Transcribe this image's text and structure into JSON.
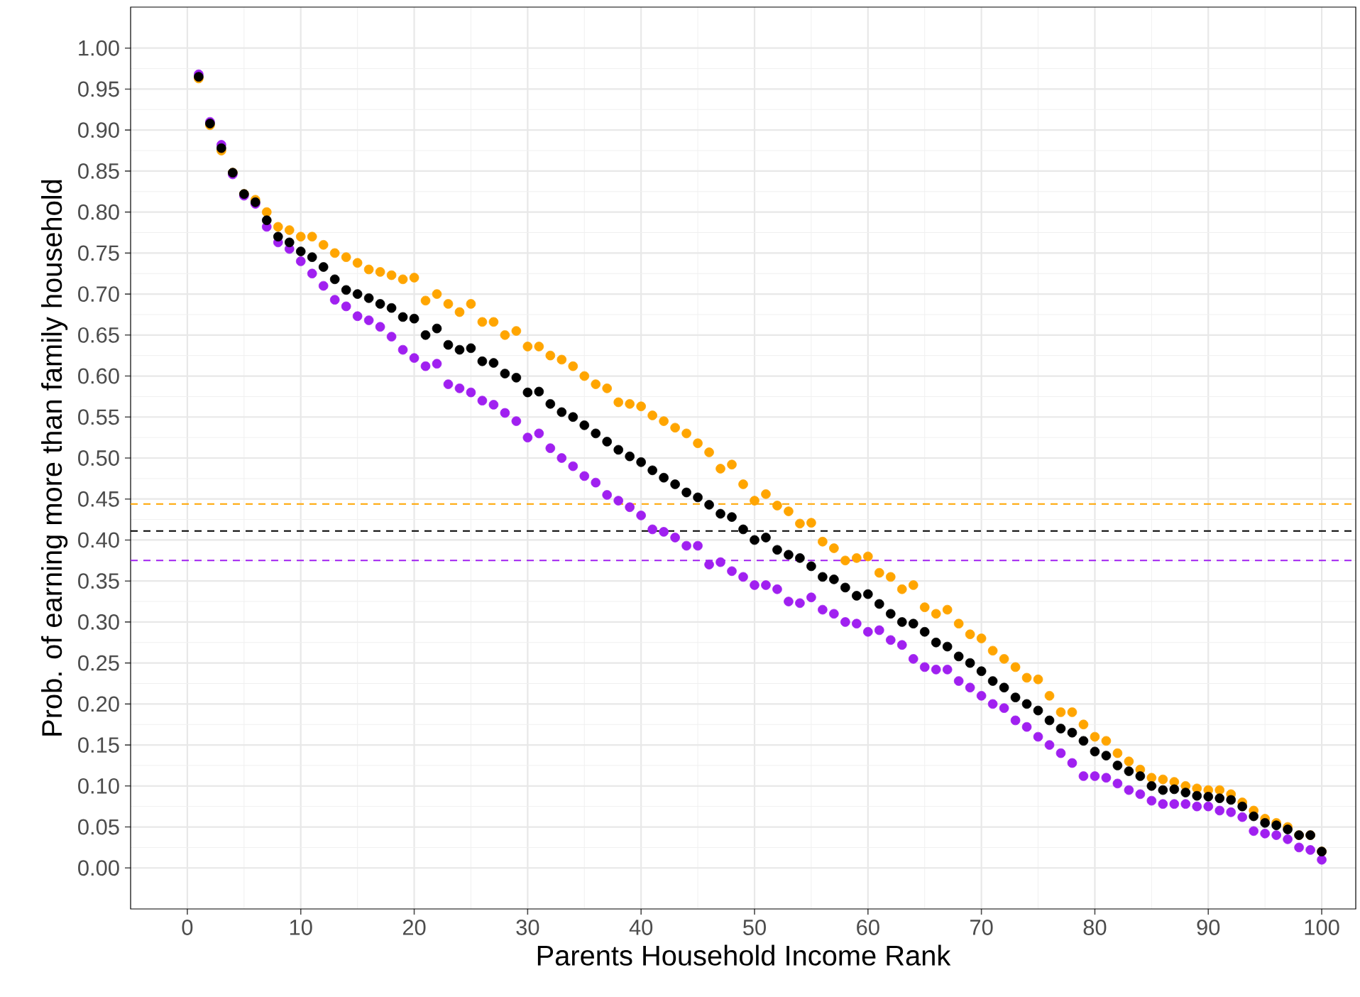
{
  "chart_data": {
    "type": "scatter",
    "xlabel": "Parents Household Income Rank",
    "ylabel": "Prob. of earning more than family household",
    "x": [
      1,
      2,
      3,
      4,
      5,
      6,
      7,
      8,
      9,
      10,
      11,
      12,
      13,
      14,
      15,
      16,
      17,
      18,
      19,
      20,
      21,
      22,
      23,
      24,
      25,
      26,
      27,
      28,
      29,
      30,
      31,
      32,
      33,
      34,
      35,
      36,
      37,
      38,
      39,
      40,
      41,
      42,
      43,
      44,
      45,
      46,
      47,
      48,
      49,
      50,
      51,
      52,
      53,
      54,
      55,
      56,
      57,
      58,
      59,
      60,
      61,
      62,
      63,
      64,
      65,
      66,
      67,
      68,
      69,
      70,
      71,
      72,
      73,
      74,
      75,
      76,
      77,
      78,
      79,
      80,
      81,
      82,
      83,
      84,
      85,
      86,
      87,
      88,
      89,
      90,
      91,
      92,
      93,
      94,
      95,
      96,
      97,
      98,
      99,
      100
    ],
    "series": [
      {
        "color": "#ffa500",
        "values": [
          0.963,
          0.906,
          0.875,
          0.848,
          0.822,
          0.815,
          0.8,
          0.782,
          0.778,
          0.77,
          0.77,
          0.76,
          0.75,
          0.745,
          0.738,
          0.73,
          0.727,
          0.723,
          0.718,
          0.72,
          0.692,
          0.7,
          0.688,
          0.678,
          0.688,
          0.666,
          0.666,
          0.65,
          0.655,
          0.636,
          0.636,
          0.625,
          0.62,
          0.612,
          0.6,
          0.59,
          0.585,
          0.568,
          0.566,
          0.563,
          0.552,
          0.545,
          0.537,
          0.53,
          0.518,
          0.507,
          0.487,
          0.492,
          0.468,
          0.448,
          0.456,
          0.442,
          0.435,
          0.42,
          0.421,
          0.398,
          0.39,
          0.375,
          0.378,
          0.38,
          0.36,
          0.355,
          0.34,
          0.345,
          0.318,
          0.31,
          0.315,
          0.298,
          0.285,
          0.28,
          0.265,
          0.255,
          0.245,
          0.232,
          0.23,
          0.21,
          0.19,
          0.19,
          0.175,
          0.16,
          0.155,
          0.14,
          0.13,
          0.12,
          0.11,
          0.108,
          0.105,
          0.1,
          0.097,
          0.095,
          0.095,
          0.09,
          0.08,
          0.07,
          0.06,
          0.055,
          0.05,
          0.04,
          0.04,
          0.02
        ]
      },
      {
        "color": "#a020f0",
        "values": [
          0.968,
          0.91,
          0.882,
          0.846,
          0.82,
          0.81,
          0.782,
          0.763,
          0.755,
          0.74,
          0.725,
          0.71,
          0.693,
          0.685,
          0.673,
          0.668,
          0.66,
          0.648,
          0.632,
          0.622,
          0.612,
          0.615,
          0.59,
          0.585,
          0.58,
          0.57,
          0.565,
          0.555,
          0.545,
          0.525,
          0.53,
          0.512,
          0.5,
          0.49,
          0.478,
          0.47,
          0.455,
          0.448,
          0.44,
          0.43,
          0.413,
          0.41,
          0.403,
          0.393,
          0.393,
          0.37,
          0.373,
          0.362,
          0.355,
          0.345,
          0.345,
          0.34,
          0.325,
          0.323,
          0.33,
          0.315,
          0.31,
          0.3,
          0.298,
          0.288,
          0.29,
          0.278,
          0.272,
          0.255,
          0.245,
          0.242,
          0.242,
          0.228,
          0.22,
          0.21,
          0.2,
          0.195,
          0.18,
          0.172,
          0.16,
          0.15,
          0.14,
          0.128,
          0.112,
          0.112,
          0.11,
          0.103,
          0.095,
          0.09,
          0.082,
          0.078,
          0.078,
          0.078,
          0.075,
          0.075,
          0.07,
          0.068,
          0.062,
          0.045,
          0.042,
          0.04,
          0.035,
          0.025,
          0.022,
          0.01
        ]
      },
      {
        "color": "#000000",
        "values": [
          0.965,
          0.908,
          0.878,
          0.848,
          0.822,
          0.812,
          0.79,
          0.77,
          0.763,
          0.752,
          0.745,
          0.733,
          0.718,
          0.705,
          0.7,
          0.695,
          0.688,
          0.683,
          0.672,
          0.67,
          0.65,
          0.658,
          0.638,
          0.632,
          0.634,
          0.618,
          0.616,
          0.603,
          0.598,
          0.58,
          0.581,
          0.566,
          0.556,
          0.55,
          0.54,
          0.53,
          0.52,
          0.51,
          0.502,
          0.495,
          0.485,
          0.476,
          0.468,
          0.458,
          0.452,
          0.443,
          0.432,
          0.428,
          0.413,
          0.4,
          0.403,
          0.388,
          0.382,
          0.378,
          0.368,
          0.355,
          0.352,
          0.342,
          0.332,
          0.334,
          0.322,
          0.31,
          0.3,
          0.298,
          0.288,
          0.275,
          0.27,
          0.258,
          0.25,
          0.24,
          0.228,
          0.22,
          0.208,
          0.2,
          0.192,
          0.18,
          0.17,
          0.165,
          0.155,
          0.142,
          0.137,
          0.125,
          0.118,
          0.112,
          0.1,
          0.095,
          0.096,
          0.092,
          0.088,
          0.087,
          0.085,
          0.083,
          0.075,
          0.063,
          0.055,
          0.052,
          0.047,
          0.04,
          0.04,
          0.02
        ]
      }
    ],
    "ref_lines": [
      {
        "axis": "y",
        "value": 0.444,
        "color": "#ffa500",
        "line_style": "dashed"
      },
      {
        "axis": "y",
        "value": 0.411,
        "color": "#000000",
        "line_style": "dashed"
      },
      {
        "axis": "y",
        "value": 0.375,
        "color": "#a020f0",
        "line_style": "dashed"
      }
    ],
    "xlim": [
      -5,
      103
    ],
    "ylim": [
      -0.05,
      1.05
    ],
    "xticks": [
      0,
      10,
      20,
      30,
      40,
      50,
      60,
      70,
      80,
      90,
      100
    ],
    "yticks": [
      {
        "value": 0,
        "label": "0.00"
      },
      {
        "value": 0.05,
        "label": "0.05"
      },
      {
        "value": 0.1,
        "label": "0.10"
      },
      {
        "value": 0.15,
        "label": "0.15"
      },
      {
        "value": 0.2,
        "label": "0.20"
      },
      {
        "value": 0.25,
        "label": "0.25"
      },
      {
        "value": 0.3,
        "label": "0.30"
      },
      {
        "value": 0.35,
        "label": "0.35"
      },
      {
        "value": 0.4,
        "label": "0.40"
      },
      {
        "value": 0.45,
        "label": "0.45"
      },
      {
        "value": 0.5,
        "label": "0.50"
      },
      {
        "value": 0.55,
        "label": "0.55"
      },
      {
        "value": 0.6,
        "label": "0.60"
      },
      {
        "value": 0.65,
        "label": "0.65"
      },
      {
        "value": 0.7,
        "label": "0.70"
      },
      {
        "value": 0.75,
        "label": "0.75"
      },
      {
        "value": 0.8,
        "label": "0.80"
      },
      {
        "value": 0.85,
        "label": "0.85"
      },
      {
        "value": 0.9,
        "label": "0.90"
      },
      {
        "value": 0.95,
        "label": "0.95"
      },
      {
        "value": 1,
        "label": "1.00"
      }
    ],
    "grid": true,
    "legend": false,
    "marker": "circle"
  }
}
